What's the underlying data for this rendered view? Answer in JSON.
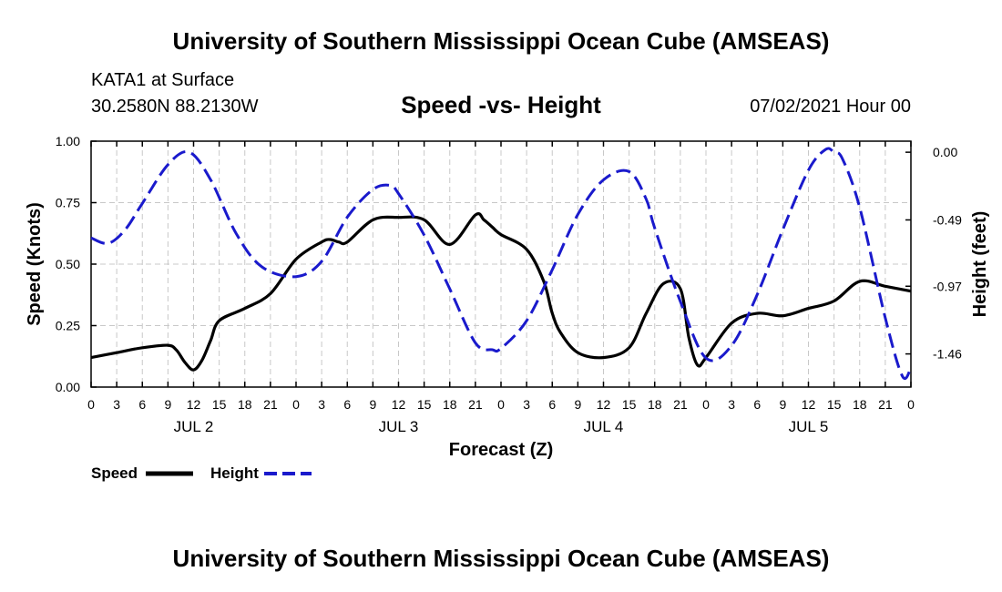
{
  "header": {
    "top_title": "University of Southern Mississippi Ocean Cube (AMSEAS)",
    "station": "KATA1 at Surface",
    "coords": "30.2580N  88.2130W",
    "chart_title": "Speed -vs- Height",
    "datestamp": "07/02/2021 Hour 00"
  },
  "footer": {
    "bottom_title": "University of Southern Mississippi Ocean Cube (AMSEAS)"
  },
  "colors": {
    "speed": "#000000",
    "height": "#1a1acc",
    "grid": "#c8c8c8"
  },
  "chart_data": {
    "type": "line",
    "title": "Speed -vs- Height",
    "xlabel": "Forecast (Z)",
    "ylabel": "Speed (Knots)",
    "ylabel_right": "Height (feet)",
    "xlim": [
      0,
      96
    ],
    "ylim": [
      0,
      1.0
    ],
    "ylim_right": [
      -1.7,
      0.08
    ],
    "x_tick_values": [
      0,
      3,
      6,
      9,
      12,
      15,
      18,
      21,
      24,
      27,
      30,
      33,
      36,
      39,
      42,
      45,
      48,
      51,
      54,
      57,
      60,
      63,
      66,
      69,
      72,
      75,
      78,
      81,
      84,
      87,
      90,
      93,
      96
    ],
    "x_tick_labels": [
      "0",
      "3",
      "6",
      "9",
      "12",
      "15",
      "18",
      "21",
      "0",
      "3",
      "6",
      "9",
      "12",
      "15",
      "18",
      "21",
      "0",
      "3",
      "6",
      "9",
      "12",
      "15",
      "18",
      "21",
      "0",
      "3",
      "6",
      "9",
      "12",
      "15",
      "18",
      "21",
      "0"
    ],
    "day_labels": [
      {
        "x": 12,
        "label": "JUL 2"
      },
      {
        "x": 36,
        "label": "JUL 3"
      },
      {
        "x": 60,
        "label": "JUL 4"
      },
      {
        "x": 84,
        "label": "JUL 5"
      }
    ],
    "y_ticks": [
      {
        "value": 0.0,
        "label": "0.00"
      },
      {
        "value": 0.25,
        "label": "0.25"
      },
      {
        "value": 0.5,
        "label": "0.50"
      },
      {
        "value": 0.75,
        "label": "0.75"
      },
      {
        "value": 1.0,
        "label": "1.00"
      }
    ],
    "y_ticks_right": [
      {
        "value": 0.0,
        "label": "0.00"
      },
      {
        "value": -0.49,
        "label": "-0.49"
      },
      {
        "value": -0.97,
        "label": "-0.97"
      },
      {
        "value": -1.46,
        "label": "-1.46"
      }
    ],
    "grid": true,
    "legend_position": "bottom-left",
    "series": [
      {
        "name": "Speed",
        "axis": "left",
        "style": "solid",
        "x": [
          0,
          3,
          6,
          9,
          10,
          11,
          12,
          13,
          14,
          15,
          18,
          21,
          24,
          27,
          28,
          29,
          30,
          33,
          36,
          39,
          42,
          45,
          46,
          47,
          48,
          51,
          53,
          54,
          55,
          57,
          60,
          63,
          65,
          67,
          69,
          70,
          71,
          72,
          75,
          78,
          81,
          84,
          87,
          90,
          93,
          96
        ],
        "values": [
          0.12,
          0.14,
          0.16,
          0.17,
          0.15,
          0.1,
          0.07,
          0.11,
          0.19,
          0.27,
          0.32,
          0.38,
          0.52,
          0.59,
          0.6,
          0.59,
          0.59,
          0.68,
          0.69,
          0.68,
          0.58,
          0.7,
          0.68,
          0.65,
          0.62,
          0.56,
          0.43,
          0.3,
          0.22,
          0.14,
          0.12,
          0.16,
          0.3,
          0.42,
          0.4,
          0.2,
          0.09,
          0.12,
          0.26,
          0.3,
          0.29,
          0.32,
          0.35,
          0.43,
          0.41,
          0.39
        ]
      },
      {
        "name": "Height",
        "axis": "right",
        "style": "dashed",
        "x": [
          0,
          2,
          4,
          6,
          9,
          11.5,
          14,
          17,
          20,
          24,
          27,
          30,
          33,
          35,
          36,
          39,
          42,
          45,
          47,
          48,
          51,
          54,
          57,
          60,
          63,
          65,
          66,
          69,
          72,
          75,
          78,
          81,
          84,
          86,
          87,
          88,
          90,
          93,
          95,
          96
        ],
        "values": [
          -0.62,
          -0.66,
          -0.56,
          -0.37,
          -0.09,
          0.0,
          -0.2,
          -0.59,
          -0.83,
          -0.9,
          -0.79,
          -0.47,
          -0.27,
          -0.24,
          -0.3,
          -0.6,
          -0.99,
          -1.38,
          -1.43,
          -1.42,
          -1.22,
          -0.85,
          -0.45,
          -0.2,
          -0.14,
          -0.34,
          -0.55,
          -1.08,
          -1.49,
          -1.4,
          -1.03,
          -0.56,
          -0.13,
          0.02,
          0.0,
          -0.05,
          -0.4,
          -1.2,
          -1.62,
          -1.56
        ]
      }
    ]
  }
}
